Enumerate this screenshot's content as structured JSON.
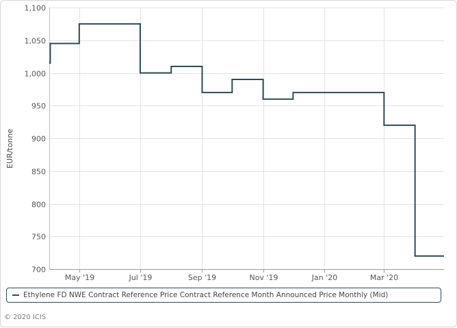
{
  "chart_data": {
    "type": "line",
    "step": true,
    "ylabel": "EUR/tonne",
    "ylim": [
      700,
      1100
    ],
    "yticks": [
      700,
      750,
      800,
      850,
      900,
      950,
      1000,
      1050,
      1100
    ],
    "ytick_labels": [
      "700",
      "750",
      "800",
      "850",
      "900",
      "950",
      "1,000",
      "1,050",
      "1,100"
    ],
    "xlim": [
      "2019-04-01",
      "2020-04-30"
    ],
    "xticks": [
      {
        "date": "2019-05-01",
        "label": "May '19"
      },
      {
        "date": "2019-07-01",
        "label": "Jul '19"
      },
      {
        "date": "2019-09-01",
        "label": "Sep '19"
      },
      {
        "date": "2019-11-01",
        "label": "Nov '19"
      },
      {
        "date": "2020-01-01",
        "label": "Jan '20"
      },
      {
        "date": "2020-03-01",
        "label": "Mar '20"
      }
    ],
    "grid": true,
    "legend_position": "bottom",
    "series": [
      {
        "name": "Ethylene FD NWE Contract Reference Price Contract Reference Month Announced Price Monthly (Mid)",
        "color": "#2e4a55",
        "points": [
          {
            "x": "2019-04-01",
            "y": 1015
          },
          {
            "x": "2019-04-02",
            "y": 1045
          },
          {
            "x": "2019-05-01",
            "y": 1075
          },
          {
            "x": "2019-07-01",
            "y": 1000
          },
          {
            "x": "2019-08-01",
            "y": 1010
          },
          {
            "x": "2019-09-01",
            "y": 970
          },
          {
            "x": "2019-10-01",
            "y": 990
          },
          {
            "x": "2019-11-01",
            "y": 960
          },
          {
            "x": "2019-12-01",
            "y": 970
          },
          {
            "x": "2020-03-01",
            "y": 920
          },
          {
            "x": "2020-04-01",
            "y": 720
          }
        ]
      }
    ]
  },
  "copyright": "© 2020 ICIS"
}
